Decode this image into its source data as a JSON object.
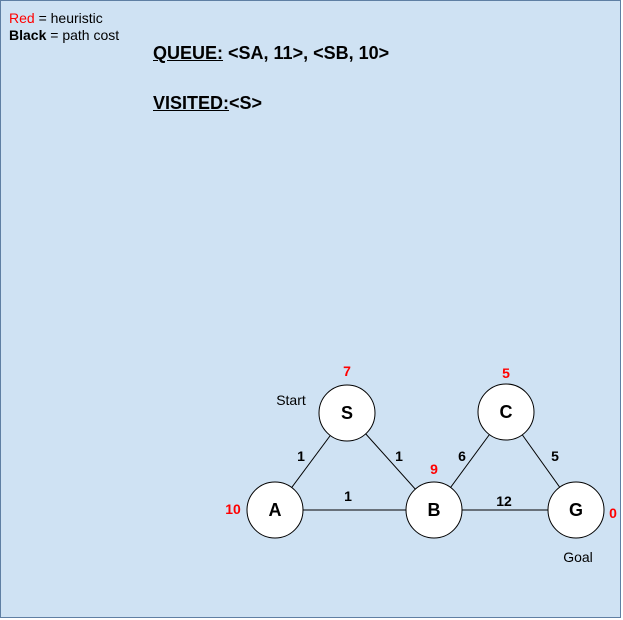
{
  "legend": {
    "red_word": "Red",
    "red_text": " = heuristic",
    "black_word": "Black",
    "black_text": " = path cost"
  },
  "queue": {
    "label": "QUEUE:",
    "value": " <SA, 11>, <SB, 10>"
  },
  "visited": {
    "label": "VISITED:",
    "value": "<S>"
  },
  "colors": {
    "background": "#cfe2f3",
    "heuristic": "#ff0000",
    "node_fill": "#ffffff"
  },
  "graph": {
    "nodes": [
      {
        "id": "S",
        "heuristic": "7"
      },
      {
        "id": "A",
        "heuristic": "10"
      },
      {
        "id": "B",
        "heuristic": "9"
      },
      {
        "id": "C",
        "heuristic": "5"
      },
      {
        "id": "G",
        "heuristic": "0"
      }
    ],
    "edges": [
      {
        "from": "S",
        "to": "A",
        "cost": "1"
      },
      {
        "from": "S",
        "to": "B",
        "cost": "1"
      },
      {
        "from": "A",
        "to": "B",
        "cost": "1"
      },
      {
        "from": "B",
        "to": "C",
        "cost": "6"
      },
      {
        "from": "C",
        "to": "G",
        "cost": "5"
      },
      {
        "from": "B",
        "to": "G",
        "cost": "12"
      }
    ],
    "start_label": "Start",
    "goal_label": "Goal"
  }
}
